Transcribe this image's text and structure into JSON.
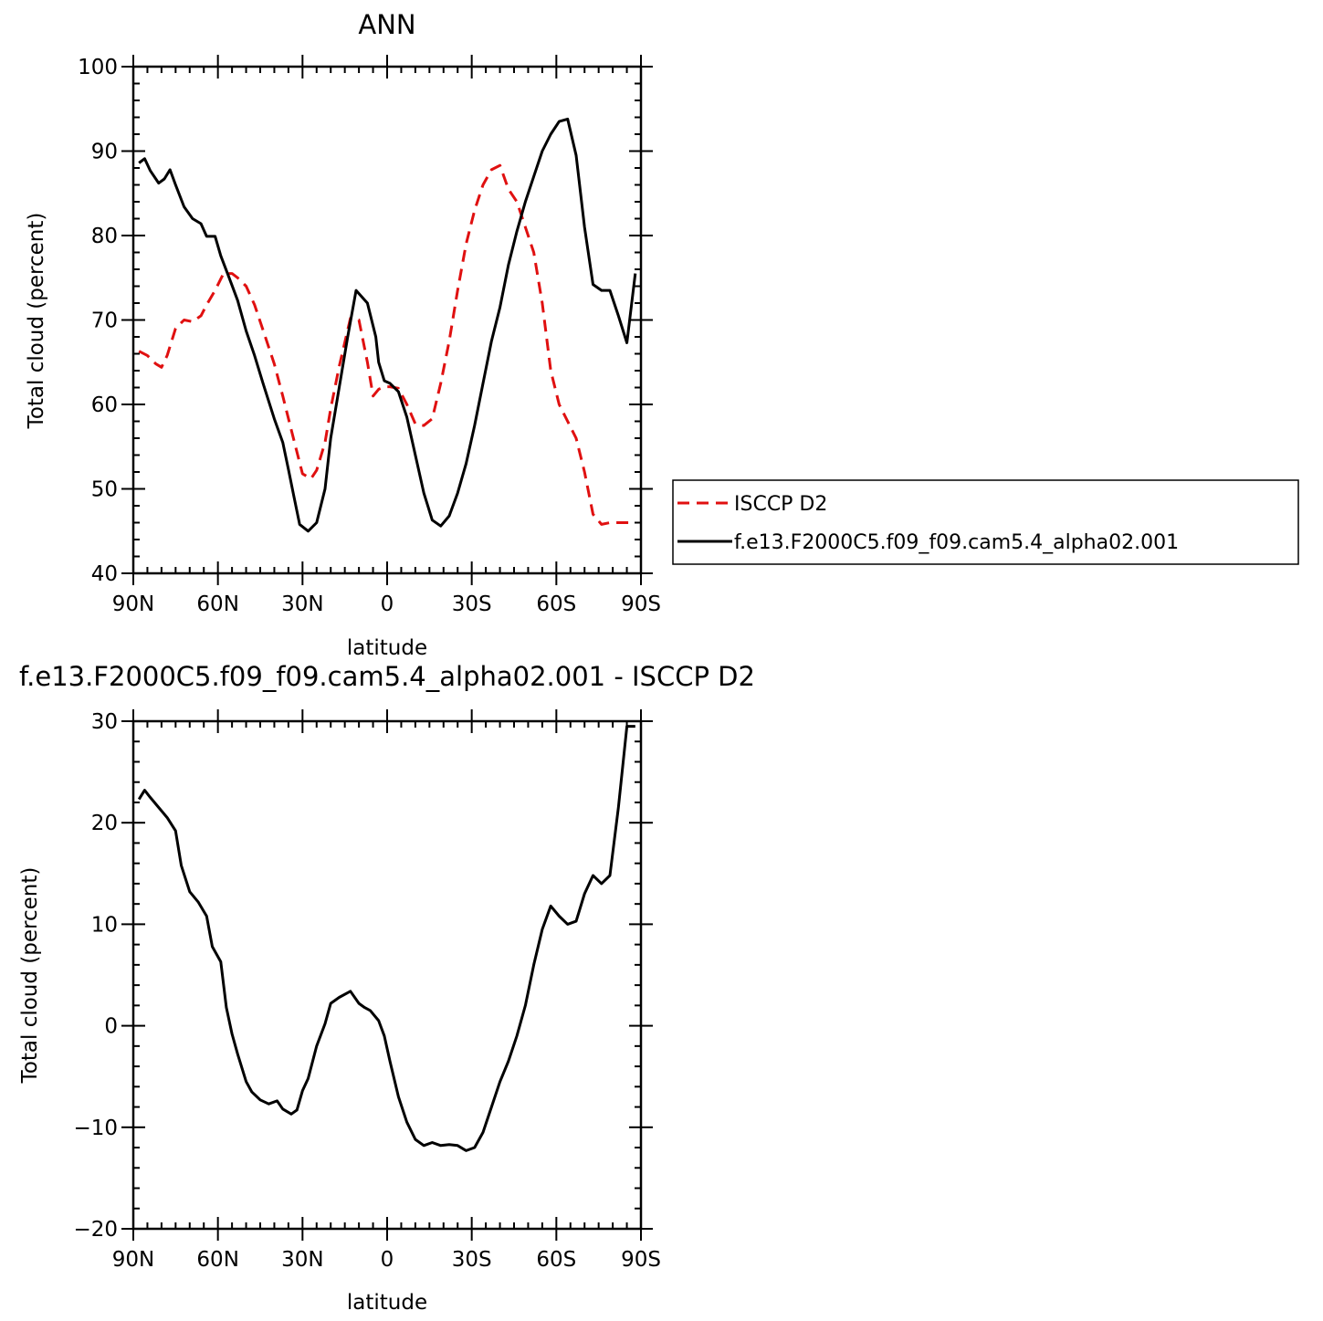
{
  "chart_data": [
    {
      "type": "line",
      "title": "ANN",
      "xlabel": "latitude",
      "ylabel": "Total cloud (percent)",
      "xlim": [
        -90,
        90
      ],
      "ylim": [
        40,
        100
      ],
      "yticks": [
        40,
        50,
        60,
        70,
        80,
        90,
        100
      ],
      "xticks": [
        {
          "value": -90,
          "label": "90N"
        },
        {
          "value": -60,
          "label": "60N"
        },
        {
          "value": -30,
          "label": "30N"
        },
        {
          "value": 0,
          "label": "0"
        },
        {
          "value": 30,
          "label": "30S"
        },
        {
          "value": 60,
          "label": "60S"
        },
        {
          "value": 90,
          "label": "90S"
        }
      ],
      "grid": false,
      "legend_position": "outside-right",
      "series": [
        {
          "name": "ISCCP D2",
          "color": "#e01010",
          "dash": "dashed",
          "x": [
            -88,
            -85,
            -82,
            -80,
            -78,
            -75,
            -72,
            -69,
            -66,
            -64,
            -61,
            -58,
            -55,
            -53,
            -50,
            -47,
            -44,
            -40,
            -37,
            -34,
            -30,
            -27,
            -25,
            -22,
            -20,
            -17,
            -13,
            -10,
            -7,
            -5,
            -3,
            -1,
            1,
            4,
            7,
            10,
            13,
            16,
            19,
            22,
            25,
            28,
            31,
            34,
            37,
            40,
            43,
            46,
            49,
            52,
            55,
            58,
            61,
            64,
            67,
            70,
            73,
            76,
            79,
            82,
            85,
            88
          ],
          "y": [
            66.3,
            65.8,
            64.8,
            64.4,
            65.8,
            69.0,
            70.0,
            69.8,
            70.5,
            71.8,
            73.5,
            75.5,
            75.5,
            75.0,
            74.0,
            71.8,
            68.8,
            64.8,
            61.0,
            57.0,
            51.8,
            51.2,
            52.2,
            55.5,
            59.5,
            64.5,
            70.2,
            70.0,
            65.0,
            61.0,
            61.8,
            62.1,
            62.1,
            61.9,
            60.0,
            57.7,
            57.5,
            58.3,
            62.5,
            67.5,
            73.5,
            79.0,
            83.0,
            86.0,
            87.8,
            88.3,
            85.5,
            84.0,
            81.0,
            78.0,
            72.0,
            64.0,
            60.0,
            58.0,
            56.0,
            52.0,
            47.0,
            45.8,
            46.0,
            46.0,
            46.0,
            46.0
          ]
        },
        {
          "name": "f.e13.F2000C5.f09_f09.cam5.4_alpha02.001",
          "color": "#000000",
          "dash": "solid",
          "x": [
            -88,
            -86,
            -84,
            -81,
            -79,
            -77,
            -75,
            -72,
            -69,
            -66,
            -64,
            -61,
            -59,
            -56,
            -53,
            -50,
            -47,
            -44,
            -40,
            -37,
            -35,
            -33,
            -31,
            -28,
            -25,
            -22,
            -20,
            -17,
            -14,
            -11,
            -7,
            -4,
            -3,
            -1,
            1,
            4,
            7,
            10,
            13,
            16,
            19,
            22,
            25,
            28,
            31,
            34,
            37,
            40,
            43,
            46,
            49,
            52,
            55,
            58,
            61,
            64,
            67,
            70,
            73,
            76,
            79,
            82,
            85,
            88
          ],
          "y": [
            88.6,
            89.1,
            87.7,
            86.2,
            86.7,
            87.8,
            86.0,
            83.4,
            82.0,
            81.4,
            79.9,
            79.9,
            77.6,
            75.0,
            72.3,
            68.7,
            65.8,
            62.5,
            58.3,
            55.5,
            52.3,
            49.0,
            45.8,
            45.0,
            46.0,
            50.0,
            56.0,
            62.0,
            68.0,
            73.5,
            72.0,
            68.0,
            65.0,
            62.8,
            62.5,
            61.5,
            58.5,
            54.0,
            49.5,
            46.3,
            45.6,
            46.8,
            49.5,
            53.0,
            57.5,
            62.5,
            67.5,
            71.5,
            76.5,
            80.5,
            84.0,
            87.0,
            90.0,
            92.0,
            93.5,
            93.8,
            89.5,
            81.0,
            74.2,
            73.5,
            73.5,
            70.5,
            67.3,
            75.5
          ]
        }
      ]
    },
    {
      "type": "line",
      "title": "f.e13.F2000C5.f09_f09.cam5.4_alpha02.001  -  ISCCP D2",
      "xlabel": "latitude",
      "ylabel": "Total cloud (percent)",
      "xlim": [
        -90,
        90
      ],
      "ylim": [
        -20,
        30
      ],
      "yticks": [
        -20,
        -10,
        0,
        10,
        20,
        30
      ],
      "ytick_labels": [
        "−20",
        "−10",
        "0",
        "10",
        "20",
        "30"
      ],
      "xticks": [
        {
          "value": -90,
          "label": "90N"
        },
        {
          "value": -60,
          "label": "60N"
        },
        {
          "value": -30,
          "label": "30N"
        },
        {
          "value": 0,
          "label": "0"
        },
        {
          "value": 30,
          "label": "30S"
        },
        {
          "value": 60,
          "label": "60S"
        },
        {
          "value": 90,
          "label": "90S"
        }
      ],
      "grid": false,
      "series": [
        {
          "color": "#000000",
          "dash": "solid",
          "x": [
            -88,
            -86,
            -84,
            -81,
            -78,
            -75,
            -73,
            -70,
            -67,
            -64,
            -62,
            -59,
            -57,
            -55,
            -53,
            -50,
            -48,
            -45,
            -42,
            -39,
            -37,
            -34,
            -32,
            -30,
            -28,
            -25,
            -22,
            -20,
            -17,
            -13,
            -10,
            -8,
            -6,
            -3,
            -1,
            1,
            4,
            7,
            10,
            13,
            16,
            19,
            22,
            25,
            28,
            31,
            34,
            37,
            40,
            43,
            46,
            49,
            52,
            55,
            58,
            61,
            64,
            67,
            70,
            73,
            76,
            79,
            82,
            85,
            88
          ],
          "y": [
            22.3,
            23.2,
            22.5,
            21.5,
            20.5,
            19.2,
            15.8,
            13.2,
            12.2,
            10.8,
            7.8,
            6.3,
            1.8,
            -0.8,
            -2.8,
            -5.5,
            -6.5,
            -7.3,
            -7.7,
            -7.4,
            -8.2,
            -8.7,
            -8.3,
            -6.4,
            -5.2,
            -2.0,
            0.2,
            2.2,
            2.8,
            3.4,
            2.2,
            1.8,
            1.5,
            0.5,
            -1.0,
            -3.5,
            -7.0,
            -9.5,
            -11.2,
            -11.8,
            -11.5,
            -11.8,
            -11.7,
            -11.8,
            -12.3,
            -12.0,
            -10.5,
            -8.0,
            -5.5,
            -3.5,
            -1.0,
            2.0,
            6.0,
            9.5,
            11.8,
            10.8,
            10.0,
            10.3,
            13.0,
            14.8,
            14.0,
            14.8,
            21.5,
            29.5,
            29.5
          ]
        }
      ]
    }
  ]
}
